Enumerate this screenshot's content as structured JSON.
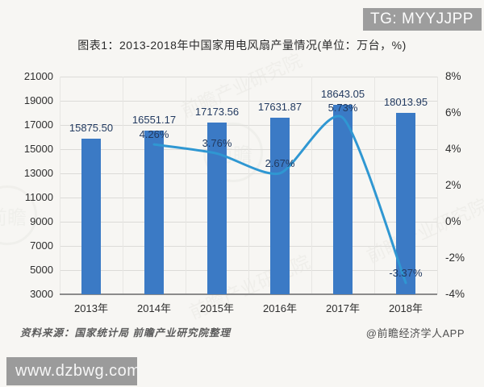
{
  "overlay": {
    "tg_label": "TG: MYYJJPP",
    "site_label": "www.dzbwg.com"
  },
  "header": {
    "title": "图表1：2013-2018年中国家用电风扇产量情况(单位：万台，%)"
  },
  "footer": {
    "source": "资料来源：国家统计局 前瞻产业研究院整理",
    "credit": "@前瞻经济学人APP"
  },
  "watermark": {
    "text": "前瞻产业研究院",
    "logo": "前瞻"
  },
  "colors": {
    "bar": "#3b7ac5",
    "line": "#2f97d2",
    "data_label": "#223a60",
    "tg_box_bg": "#9d9d9d",
    "site_box_bg": "#9b9b9b"
  },
  "chart_data": {
    "type": "bar+line",
    "title": "图表1：2013-2018年中国家用电风扇产量情况(单位：万台，%)",
    "categories": [
      "2013年",
      "2014年",
      "2015年",
      "2016年",
      "2017年",
      "2018年"
    ],
    "series": [
      {
        "type": "bar",
        "axis": "left",
        "values": [
          15875.5,
          16551.17,
          17173.56,
          17631.87,
          18643.05,
          18013.95
        ],
        "labels": [
          "15875.50",
          "16551.17",
          "17173.56",
          "17631.87",
          "18643.05",
          "18013.95"
        ]
      },
      {
        "type": "line",
        "axis": "right",
        "values": [
          null,
          4.26,
          3.76,
          2.67,
          5.73,
          -3.37
        ],
        "labels": [
          null,
          "4.26%",
          "3.76%",
          "2.67%",
          "5.73%",
          "-3.37%"
        ]
      }
    ],
    "left_axis": {
      "min": 3000,
      "max": 21000,
      "step": 2000,
      "ticks": [
        "21000",
        "19000",
        "17000",
        "15000",
        "13000",
        "11000",
        "9000",
        "7000",
        "5000",
        "3000"
      ]
    },
    "right_axis": {
      "min": -4,
      "max": 8,
      "step": 2,
      "ticks": [
        "8%",
        "6%",
        "4%",
        "2%",
        "0%",
        "-2%",
        "-4%"
      ]
    },
    "grid": true,
    "legend": "none"
  }
}
